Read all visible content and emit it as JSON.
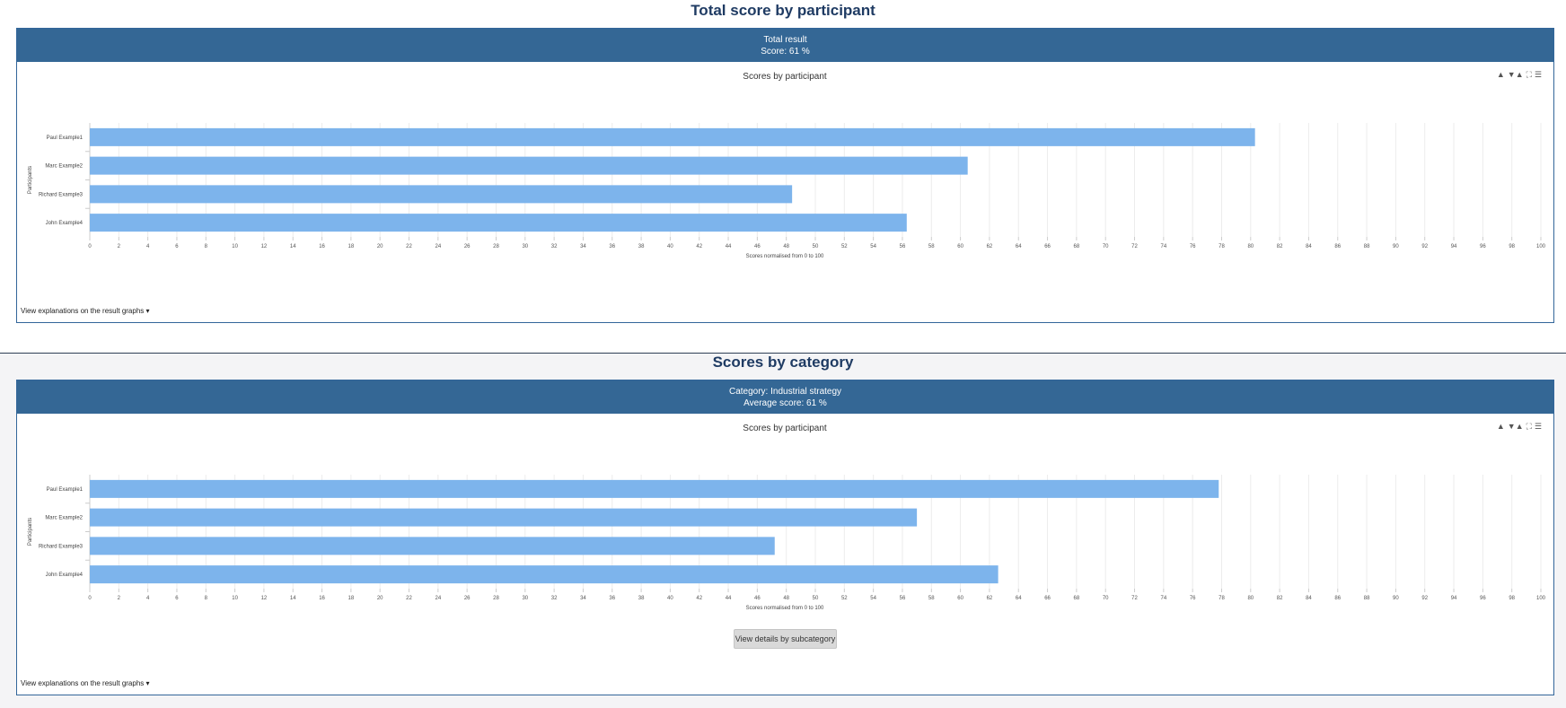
{
  "sections": [
    {
      "title": "Total score by participant",
      "header": {
        "line1": "Total result",
        "line2": "Score: 61 %"
      },
      "chart_menu": {
        "icons": [
          "triangle-up-icon",
          "sort-icon",
          "fullscreen-icon",
          "menu-icon"
        ],
        "glyphs": [
          "▲",
          "▼▲",
          "⛶",
          "☰"
        ]
      },
      "explain_link": "View explanations on the result graphs ▾",
      "details_button": null
    },
    {
      "title": "Scores by category",
      "header": {
        "line1": "Category: Industrial strategy",
        "line2": "Average score: 61 %"
      },
      "chart_menu": {
        "icons": [
          "triangle-up-icon",
          "sort-icon",
          "fullscreen-icon",
          "menu-icon"
        ],
        "glyphs": [
          "▲",
          "▼▲",
          "⛶",
          "☰"
        ]
      },
      "explain_link": "View explanations on the result graphs ▾",
      "details_button": "View details by subcategory"
    }
  ],
  "colors": {
    "bar": "#7db4ec",
    "header": "#346795",
    "title": "#1f3b63",
    "grid": "#ececec"
  },
  "chart_data": [
    {
      "type": "bar",
      "orientation": "horizontal",
      "title": "Scores by participant",
      "xlabel": "Scores normalised from 0 to 100",
      "ylabel": "Participants",
      "categories": [
        "Paul Example1",
        "Marc Example2",
        "Richard Example3",
        "John Example4"
      ],
      "values": [
        80.3,
        60.5,
        48.4,
        56.3
      ],
      "xlim": [
        0,
        100
      ],
      "xtick_step": 2,
      "grid": true
    },
    {
      "type": "bar",
      "orientation": "horizontal",
      "title": "Scores by participant",
      "xlabel": "Scores normalised from 0 to 100",
      "ylabel": "Participants",
      "categories": [
        "Paul Example1",
        "Marc Example2",
        "Richard Example3",
        "John Example4"
      ],
      "values": [
        77.8,
        57,
        47.2,
        62.6
      ],
      "xlim": [
        0,
        100
      ],
      "xtick_step": 2,
      "grid": true
    }
  ]
}
